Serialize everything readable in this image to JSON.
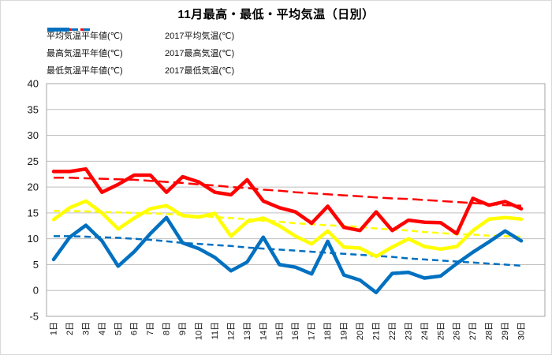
{
  "title": "11月最高・最低・平均気温（日別）",
  "colors": {
    "average": "#FFFF00",
    "max": "#FF0000",
    "min": "#0070C0",
    "gridline": "#BFBFBF",
    "plot_border": "#A6A6A6",
    "text": "#161616",
    "background": "#FFFFFF"
  },
  "legend": {
    "items": [
      {
        "label": "平均気温平年値(℃)",
        "color": "#FFFF00",
        "style": "dashed",
        "col": 0,
        "row": 0
      },
      {
        "label": "2017平均気温(℃)",
        "color": "#FFFF00",
        "style": "solid",
        "col": 1,
        "row": 0
      },
      {
        "label": "最高気温平年値(℃)",
        "color": "#FF0000",
        "style": "dashed",
        "col": 0,
        "row": 1
      },
      {
        "label": "2017最高気温(℃)",
        "color": "#FF0000",
        "style": "solid",
        "col": 1,
        "row": 1
      },
      {
        "label": "最低気温平年値(℃)",
        "color": "#0070C0",
        "style": "dashed",
        "col": 0,
        "row": 2
      },
      {
        "label": "2017最低気温(℃)",
        "color": "#0070C0",
        "style": "solid",
        "col": 1,
        "row": 2
      }
    ]
  },
  "chart_data": {
    "type": "line",
    "title": "11月最高・最低・平均気温（日別）",
    "xlabel": "",
    "ylabel": "",
    "ylim": [
      -5,
      40
    ],
    "ytick_step": 5,
    "grid": true,
    "legend_position": "top-left",
    "x_labels": [
      "1日",
      "2日",
      "3日",
      "4日",
      "5日",
      "6日",
      "7日",
      "8日",
      "9日",
      "10日",
      "11日",
      "12日",
      "13日",
      "14日",
      "15日",
      "16日",
      "17日",
      "18日",
      "19日",
      "20日",
      "21日",
      "22日",
      "23日",
      "24日",
      "25日",
      "26日",
      "27日",
      "28日",
      "29日",
      "30日"
    ],
    "series": [
      {
        "name": "avg_normal",
        "label": "平均気温平年値(℃)",
        "color": "#FFFF00",
        "dashed": true,
        "values": [
          15.4,
          15.4,
          15.3,
          15.2,
          15.1,
          15.0,
          14.9,
          14.8,
          14.6,
          14.4,
          14.2,
          14.0,
          13.8,
          13.5,
          13.3,
          13.0,
          12.8,
          12.6,
          12.5,
          12.3,
          12.0,
          11.8,
          11.6,
          11.3,
          11.1,
          10.9,
          10.8,
          10.6,
          10.5,
          10.4
        ]
      },
      {
        "name": "max_normal",
        "label": "最高気温平年値(℃)",
        "color": "#FF0000",
        "dashed": true,
        "values": [
          21.8,
          21.8,
          21.7,
          21.6,
          21.5,
          21.4,
          21.2,
          21.0,
          20.8,
          20.5,
          20.3,
          20.0,
          19.8,
          19.5,
          19.3,
          19.0,
          18.8,
          18.6,
          18.4,
          18.2,
          18.0,
          17.8,
          17.7,
          17.5,
          17.3,
          17.1,
          16.9,
          16.7,
          16.5,
          16.4
        ]
      },
      {
        "name": "min_normal",
        "label": "最低気温平年値(℃)",
        "color": "#0070C0",
        "dashed": true,
        "values": [
          10.5,
          10.5,
          10.4,
          10.3,
          10.2,
          10.0,
          9.8,
          9.5,
          9.2,
          9.0,
          8.8,
          8.6,
          8.3,
          8.1,
          7.9,
          7.7,
          7.5,
          7.3,
          7.1,
          6.9,
          6.7,
          6.5,
          6.2,
          6.0,
          5.8,
          5.6,
          5.4,
          5.2,
          5.0,
          4.8
        ]
      },
      {
        "name": "avg_2017",
        "label": "2017平均気温(℃)",
        "color": "#FFFF00",
        "dashed": false,
        "values": [
          13.7,
          16.0,
          17.3,
          15.0,
          11.9,
          14.0,
          15.8,
          16.4,
          14.5,
          14.2,
          14.9,
          10.5,
          13.3,
          14.0,
          12.5,
          10.5,
          9.0,
          11.5,
          8.4,
          8.2,
          6.6,
          8.4,
          10.0,
          8.5,
          8.0,
          8.5,
          11.6,
          13.8,
          14.1,
          13.8
        ]
      },
      {
        "name": "max_2017",
        "label": "2017最高気温(℃)",
        "color": "#FF0000",
        "dashed": false,
        "values": [
          23.0,
          23.0,
          23.5,
          19.0,
          20.5,
          22.3,
          22.3,
          19.0,
          22.0,
          21.0,
          19.0,
          18.5,
          21.4,
          17.3,
          16.0,
          15.2,
          13.0,
          16.3,
          12.2,
          11.6,
          15.2,
          11.6,
          13.6,
          13.2,
          13.1,
          11.0,
          17.8,
          16.5,
          17.2,
          15.8
        ]
      },
      {
        "name": "min_2017",
        "label": "2017最低気温(℃)",
        "color": "#0070C0",
        "dashed": false,
        "values": [
          6.0,
          10.3,
          12.6,
          9.6,
          4.7,
          7.5,
          11.0,
          14.1,
          9.2,
          8.1,
          6.4,
          3.8,
          5.5,
          10.3,
          5.0,
          4.5,
          3.2,
          9.5,
          3.0,
          2.0,
          -0.4,
          3.3,
          3.5,
          2.4,
          2.8,
          5.2,
          7.4,
          9.4,
          11.5,
          9.6
        ]
      }
    ]
  }
}
